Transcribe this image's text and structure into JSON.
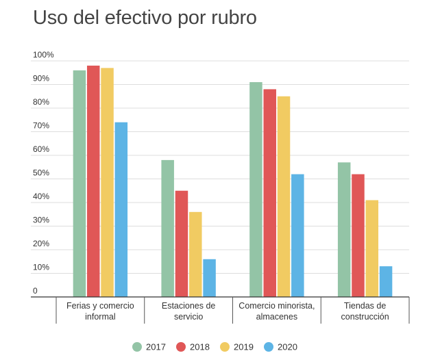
{
  "chart_data": {
    "type": "bar",
    "title": "Uso del efectivo por rubro",
    "categories": [
      [
        "Ferias y comercio",
        "informal"
      ],
      [
        "Estaciones de",
        "servicio"
      ],
      [
        "Comercio minorista,",
        "almacenes"
      ],
      [
        "Tiendas de",
        "construcción"
      ]
    ],
    "series": [
      {
        "name": "2017",
        "color": "#93c4a6",
        "values": [
          96,
          58,
          91,
          57
        ]
      },
      {
        "name": "2018",
        "color": "#e05757",
        "values": [
          98,
          45,
          88,
          52
        ]
      },
      {
        "name": "2019",
        "color": "#f1cb62",
        "values": [
          97,
          36,
          85,
          41
        ]
      },
      {
        "name": "2020",
        "color": "#5db4e5",
        "values": [
          74,
          16,
          52,
          13
        ]
      }
    ],
    "ylim": [
      0,
      100
    ],
    "yticks": [
      "0",
      "10%",
      "20%",
      "30%",
      "40%",
      "50%",
      "60%",
      "70%",
      "80%",
      "90%",
      "100%"
    ],
    "grid": true,
    "legend_position": "bottom"
  }
}
